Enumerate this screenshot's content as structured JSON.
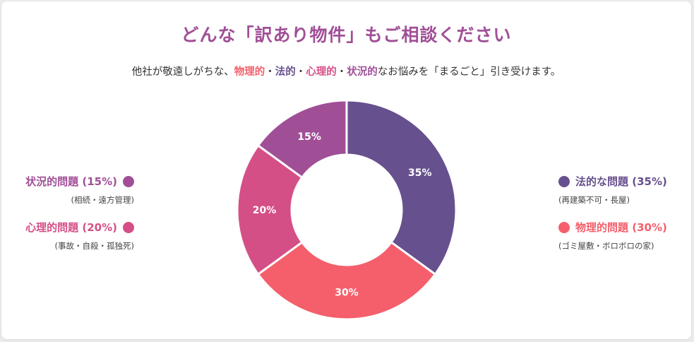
{
  "title": "どんな「訳あり物件」もご相談ください",
  "subtitle": {
    "prefix": "他社が敬遠しがちな、",
    "k1": "物理的",
    "sep1": "・",
    "k2": "法的",
    "sep2": "・",
    "k3": "心理的",
    "sep3": "・",
    "k4": "状況的",
    "suffix": "なお悩みを「まるごと」引き受けます。"
  },
  "colors": {
    "legal": "#67508e",
    "physical": "#f45f6b",
    "psychological": "#d54f87",
    "situational": "#a04f97",
    "title": "#a04f97"
  },
  "legend": {
    "situational": {
      "label": "状況的問題 (15%)",
      "detail": "(相続・遠方管理)"
    },
    "psychological": {
      "label": "心理的問題 (20%)",
      "detail": "(事故・自殺・孤独死)"
    },
    "legal": {
      "label": "法的な問題 (35%)",
      "detail": "(再建築不可・長屋)"
    },
    "physical": {
      "label": "物理的問題 (30%)",
      "detail": "(ゴミ屋敷・ボロボロの家)"
    }
  },
  "chart_data": {
    "type": "pie",
    "variant": "donut",
    "start": "top, clockwise",
    "series": [
      {
        "name": "法的な問題",
        "value": 35,
        "label": "35%",
        "color": "#67508e"
      },
      {
        "name": "物理的問題",
        "value": 30,
        "label": "30%",
        "color": "#f45f6b"
      },
      {
        "name": "心理的問題",
        "value": 20,
        "label": "20%",
        "color": "#d54f87"
      },
      {
        "name": "状況的問題",
        "value": 15,
        "label": "15%",
        "color": "#a04f97"
      }
    ]
  }
}
